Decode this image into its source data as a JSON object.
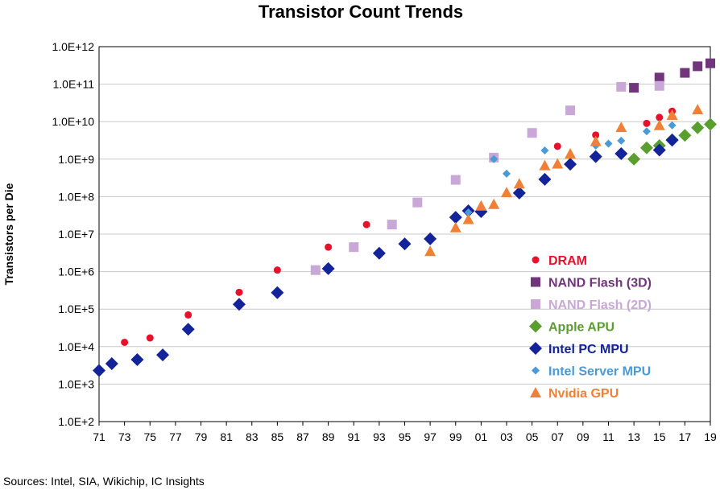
{
  "chart_data": {
    "type": "scatter",
    "title": "Transistor Count Trends",
    "ylabel": "Transistors per Die",
    "xlabel": "",
    "y_scale": "log",
    "ylim": [
      100,
      1000000000000
    ],
    "xlim": [
      1971,
      2019
    ],
    "y_ticks": [
      "1.0E+2",
      "1.0E+3",
      "1.0E+4",
      "1.0E+5",
      "1.0E+6",
      "1.0E+7",
      "1.0E+8",
      "1.0E+9",
      "1.0E+10",
      "1.0E+11",
      "1.0E+12"
    ],
    "x_ticks": [
      "71",
      "73",
      "75",
      "77",
      "79",
      "81",
      "83",
      "85",
      "87",
      "89",
      "91",
      "93",
      "95",
      "97",
      "99",
      "01",
      "03",
      "05",
      "07",
      "09",
      "11",
      "13",
      "15",
      "17",
      "19"
    ],
    "grid": true,
    "legend_position": "bottom-right",
    "source": "Sources:  Intel, SIA, Wikichip, IC Insights",
    "series": [
      {
        "name": "DRAM",
        "marker": "circle",
        "color": "#e8102a",
        "points": [
          [
            1973,
            13000
          ],
          [
            1975,
            17000
          ],
          [
            1978,
            70000
          ],
          [
            1982,
            280000
          ],
          [
            1985,
            1100000
          ],
          [
            1989,
            4500000
          ],
          [
            1992,
            18000000
          ],
          [
            1996,
            70000000
          ],
          [
            1999,
            280000000
          ],
          [
            2002,
            1100000000
          ],
          [
            2007,
            2200000000
          ],
          [
            2010,
            4400000000
          ],
          [
            2014,
            9000000000
          ],
          [
            2015,
            13000000000
          ],
          [
            2016,
            19000000000
          ]
        ]
      },
      {
        "name": "NAND Flash (3D)",
        "marker": "square",
        "color": "#70357a",
        "points": [
          [
            2013,
            80000000000
          ],
          [
            2015,
            150000000000
          ],
          [
            2017,
            200000000000
          ],
          [
            2018,
            300000000000
          ],
          [
            2019,
            360000000000
          ]
        ]
      },
      {
        "name": "NAND Flash (2D)",
        "marker": "square",
        "color": "#c9a7d6",
        "points": [
          [
            1988,
            1100000
          ],
          [
            1991,
            4500000
          ],
          [
            1994,
            18000000
          ],
          [
            1996,
            70000000
          ],
          [
            1999,
            280000000
          ],
          [
            2002,
            1100000000
          ],
          [
            2005,
            5000000000
          ],
          [
            2008,
            20000000000
          ],
          [
            2012,
            85000000000
          ],
          [
            2015,
            90000000000
          ]
        ]
      },
      {
        "name": "Apple APU",
        "marker": "diamond",
        "color": "#5a9e2f",
        "points": [
          [
            2013,
            1000000000
          ],
          [
            2014,
            2000000000
          ],
          [
            2015,
            2300000000
          ],
          [
            2016,
            3300000000
          ],
          [
            2017,
            4300000000
          ],
          [
            2018,
            6900000000
          ],
          [
            2019,
            8500000000
          ]
        ]
      },
      {
        "name": "Intel PC MPU",
        "marker": "diamond",
        "color": "#13239a",
        "points": [
          [
            1971,
            2300
          ],
          [
            1972,
            3500
          ],
          [
            1974,
            4500
          ],
          [
            1976,
            6000
          ],
          [
            1978,
            29000
          ],
          [
            1982,
            134000
          ],
          [
            1985,
            275000
          ],
          [
            1989,
            1200000
          ],
          [
            1993,
            3100000
          ],
          [
            1995,
            5500000
          ],
          [
            1997,
            7500000
          ],
          [
            1999,
            28000000
          ],
          [
            2000,
            42000000
          ],
          [
            2001,
            40000000
          ],
          [
            2004,
            125000000
          ],
          [
            2006,
            290000000
          ],
          [
            2008,
            730000000
          ],
          [
            2010,
            1170000000
          ],
          [
            2012,
            1400000000
          ],
          [
            2015,
            1750000000
          ],
          [
            2016,
            3200000000
          ]
        ]
      },
      {
        "name": "Intel Server MPU",
        "marker": "diamond-small",
        "color": "#4a9ad8",
        "points": [
          [
            2000,
            38000000
          ],
          [
            2002,
            1000000000
          ],
          [
            2003,
            410000000
          ],
          [
            2006,
            1700000000
          ],
          [
            2010,
            2300000000
          ],
          [
            2011,
            2600000000
          ],
          [
            2012,
            3100000000
          ],
          [
            2014,
            5500000000
          ],
          [
            2016,
            8000000000
          ]
        ]
      },
      {
        "name": "Nvidia GPU",
        "marker": "triangle",
        "color": "#f08038",
        "points": [
          [
            1997,
            3500000
          ],
          [
            1999,
            15000000
          ],
          [
            2000,
            25000000
          ],
          [
            2001,
            57000000
          ],
          [
            2002,
            63000000
          ],
          [
            2003,
            130000000
          ],
          [
            2004,
            222000000
          ],
          [
            2006,
            680000000
          ],
          [
            2007,
            754000000
          ],
          [
            2008,
            1400000000
          ],
          [
            2010,
            3000000000
          ],
          [
            2012,
            7100000000
          ],
          [
            2015,
            8000000000
          ],
          [
            2016,
            15000000000
          ],
          [
            2018,
            21000000000
          ]
        ]
      }
    ]
  }
}
